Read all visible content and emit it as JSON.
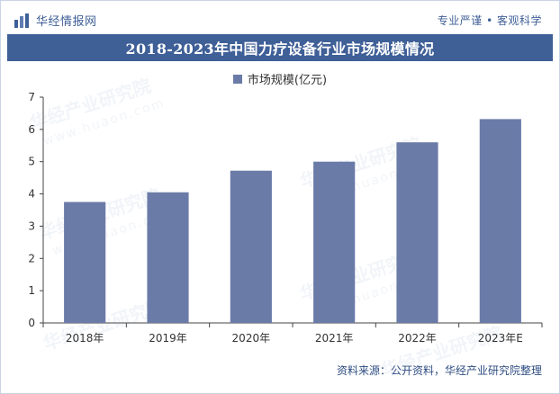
{
  "header": {
    "brand": "华经情报网",
    "tagline": "专业严谨 • 客观科学",
    "title": "2018-2023年中国力疗设备行业市场规模情况"
  },
  "watermark": {
    "text": "华经产业研究院",
    "url": "www.huaon.com"
  },
  "footer": {
    "source": "资料来源：公开资料，华经产业研究院整理"
  },
  "colors": {
    "brand": "#3f5f97",
    "bar": "#6b7ba8"
  },
  "chart_data": {
    "type": "bar",
    "categories": [
      "2018年",
      "2019年",
      "2020年",
      "2021年",
      "2022年",
      "2023年E"
    ],
    "series": [
      {
        "name": "市场规模(亿元)",
        "values": [
          3.75,
          4.05,
          4.72,
          5.0,
          5.6,
          6.32
        ]
      }
    ],
    "ylim": [
      0,
      7
    ],
    "yticks": [
      "0",
      "1",
      "2",
      "3",
      "4",
      "5",
      "6",
      "7"
    ],
    "legend": "top-center",
    "grid": false
  }
}
